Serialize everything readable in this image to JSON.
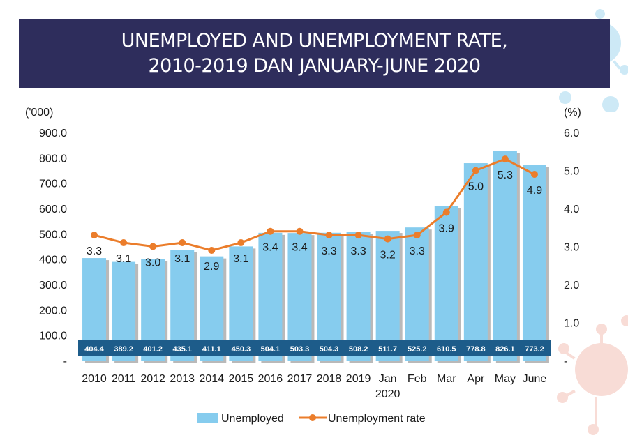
{
  "title": {
    "line1": "UNEMPLOYED AND UNEMPLOYMENT RATE,",
    "line2": "2010-2019 DAN JANUARY-JUNE 2020"
  },
  "colors": {
    "banner": "#2e2d5c",
    "bar": "#86ccee",
    "bar_shadow": "#b9b9b9",
    "line": "#eb7d2b",
    "label_band": "#1d5c8a",
    "decor": "#cde9f6",
    "decor_pink": "#f8dcd6"
  },
  "chart_data": {
    "type": "bar+line",
    "categories": [
      "2010",
      "2011",
      "2012",
      "2013",
      "2014",
      "2015",
      "2016",
      "2017",
      "2018",
      "2019",
      "Jan\n2020",
      "Feb",
      "Mar",
      "Apr",
      "May",
      "June"
    ],
    "series": [
      {
        "name": "Unemployed",
        "type": "bar",
        "axis": "left",
        "values": [
          404.4,
          389.2,
          401.2,
          435.1,
          411.1,
          450.3,
          504.1,
          503.3,
          504.3,
          508.2,
          511.7,
          525.2,
          610.5,
          778.8,
          826.1,
          773.2
        ],
        "labels": [
          "404.4",
          "389.2",
          "401.2",
          "435.1",
          "411.1",
          "450.3",
          "504.1",
          "503.3",
          "504.3",
          "508.2",
          "511.7",
          "525.2",
          "610.5",
          "778.8",
          "826.1",
          "773.2"
        ]
      },
      {
        "name": "Unemployment rate",
        "type": "line",
        "axis": "right",
        "values": [
          3.3,
          3.1,
          3.0,
          3.1,
          2.9,
          3.1,
          3.4,
          3.4,
          3.3,
          3.3,
          3.2,
          3.3,
          3.9,
          5.0,
          5.3,
          4.9
        ],
        "labels": [
          "3.3",
          "3.1",
          "3.0",
          "3.1",
          "2.9",
          "3.1",
          "3.4",
          "3.4",
          "3.3",
          "3.3",
          "3.2",
          "3.3",
          "3.9",
          "5.0",
          "5.3",
          "4.9"
        ]
      }
    ],
    "left_axis": {
      "unit_label": "('000)",
      "ylim": [
        0,
        900
      ],
      "ticks": [
        "-",
        "100.0",
        "200.0",
        "300.0",
        "400.0",
        "500.0",
        "600.0",
        "700.0",
        "800.0",
        "900.0"
      ]
    },
    "right_axis": {
      "unit_label": "(%)",
      "ylim": [
        0,
        6
      ],
      "ticks": [
        "-",
        "1.0",
        "2.0",
        "3.0",
        "4.0",
        "5.0",
        "6.0"
      ]
    },
    "grid": false,
    "legend": {
      "position": "bottom",
      "entries": [
        "Unemployed",
        "Unemployment rate"
      ]
    }
  }
}
